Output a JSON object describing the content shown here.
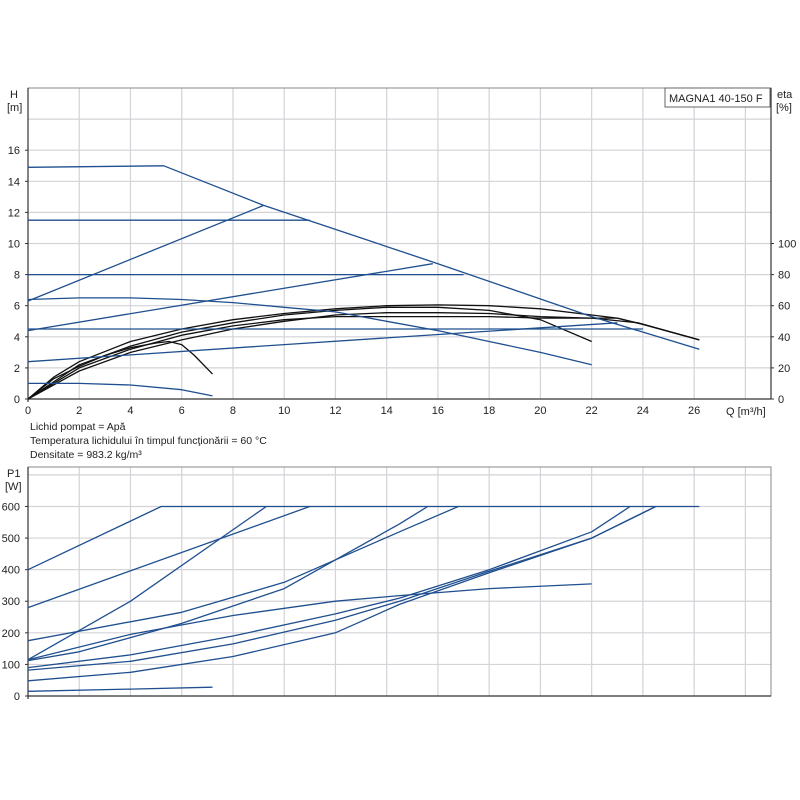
{
  "chart_data": [
    {
      "type": "line",
      "title": "MAGNA1 40-150 F",
      "xlabel": "Q [m³/h]",
      "ylabel": "H",
      "ylabel_unit": "[m]",
      "y2label": "eta",
      "y2label_unit": "[%]",
      "xlim": [
        0,
        29
      ],
      "ylim": [
        0,
        20
      ],
      "y2lim": [
        0,
        200
      ],
      "grid": true,
      "x_ticks": [
        "0",
        "2",
        "4",
        "6",
        "8",
        "10",
        "12",
        "14",
        "16",
        "18",
        "20",
        "22",
        "24",
        "26"
      ],
      "y_ticks": [
        "0",
        "2",
        "4",
        "6",
        "8",
        "10",
        "12",
        "14",
        "16"
      ],
      "y2_ticks": [
        "0",
        "20",
        "40",
        "60",
        "80",
        "100"
      ],
      "colors": {
        "head": "#1f4f8f",
        "efficiency": "#111111",
        "grid": "#d3d3d8"
      },
      "head_series": [
        {
          "points": [
            [
              0,
              14.9
            ],
            [
              5.3,
              15
            ],
            [
              9.2,
              12.45
            ],
            [
              16,
              8.7
            ],
            [
              22,
              5.3
            ],
            [
              26.2,
              3.2
            ]
          ]
        },
        {
          "points": [
            [
              0,
              11.5
            ],
            [
              11,
              11.5
            ]
          ]
        },
        {
          "points": [
            [
              0,
              8
            ],
            [
              17,
              8
            ]
          ]
        },
        {
          "points": [
            [
              0,
              4.5
            ],
            [
              24,
              4.5
            ]
          ]
        },
        {
          "points": [
            [
              0,
              6.3
            ],
            [
              9.2,
              12.45
            ]
          ]
        },
        {
          "points": [
            [
              0,
              4.4
            ],
            [
              15.8,
              8.7
            ]
          ]
        },
        {
          "points": [
            [
              0,
              2.4
            ],
            [
              10,
              3.5
            ],
            [
              23,
              4.9
            ]
          ]
        },
        {
          "points": [
            [
              0,
              6.4
            ],
            [
              2,
              6.5
            ],
            [
              4,
              6.5
            ],
            [
              6,
              6.4
            ],
            [
              8,
              6.2
            ],
            [
              10,
              5.9
            ],
            [
              12,
              5.6
            ],
            [
              14,
              5.0
            ],
            [
              16,
              4.4
            ],
            [
              18,
              3.7
            ],
            [
              20,
              3.0
            ],
            [
              22,
              2.2
            ]
          ]
        },
        {
          "points": [
            [
              0,
              1
            ],
            [
              2,
              1
            ],
            [
              4,
              0.9
            ],
            [
              6,
              0.6
            ],
            [
              7.2,
              0.2
            ]
          ]
        }
      ],
      "efficiency_series": [
        {
          "points": [
            [
              0,
              0
            ],
            [
              1,
              14
            ],
            [
              2,
              24
            ],
            [
              4,
              37
            ],
            [
              6,
              45
            ],
            [
              8,
              51
            ],
            [
              10,
              55
            ],
            [
              12,
              58
            ],
            [
              14,
              60
            ],
            [
              16,
              60.5
            ],
            [
              18,
              60
            ],
            [
              20,
              58
            ],
            [
              22,
              54
            ],
            [
              23,
              52
            ],
            [
              24,
              48
            ],
            [
              26.2,
              38
            ]
          ]
        },
        {
          "points": [
            [
              0,
              0
            ],
            [
              2,
              22
            ],
            [
              4,
              34
            ],
            [
              6,
              43
            ],
            [
              8,
              49
            ],
            [
              10,
              54
            ],
            [
              12,
              57
            ],
            [
              14,
              59
            ],
            [
              16,
              59
            ],
            [
              18,
              57
            ],
            [
              20,
              51
            ],
            [
              22,
              37
            ]
          ]
        },
        {
          "points": [
            [
              0,
              0
            ],
            [
              2,
              20
            ],
            [
              4,
              32
            ],
            [
              6,
              41
            ],
            [
              8,
              47
            ],
            [
              10,
              51
            ],
            [
              12,
              53
            ],
            [
              14,
              53
            ],
            [
              16,
              53
            ],
            [
              18,
              53
            ],
            [
              20,
              52
            ],
            [
              22,
              52
            ],
            [
              23,
              52
            ],
            [
              24,
              48
            ],
            [
              26.2,
              38
            ]
          ]
        },
        {
          "points": [
            [
              0,
              0
            ],
            [
              2,
              18
            ],
            [
              4,
              30
            ],
            [
              6,
              38
            ],
            [
              8,
              45
            ],
            [
              10,
              50
            ],
            [
              12,
              54
            ],
            [
              14,
              55.5
            ],
            [
              16,
              55.5
            ],
            [
              18,
              55
            ],
            [
              20,
              53
            ],
            [
              22,
              52
            ],
            [
              23.8,
              49
            ],
            [
              26.2,
              38
            ]
          ]
        },
        {
          "points": [
            [
              0,
              0
            ],
            [
              1,
              13
            ],
            [
              2,
              21
            ],
            [
              3,
              28
            ],
            [
              4,
              33
            ],
            [
              5,
              36
            ],
            [
              5.5,
              37
            ],
            [
              6,
              35
            ],
            [
              6.5,
              28
            ],
            [
              7.2,
              16
            ]
          ]
        }
      ]
    },
    {
      "type": "line",
      "ylabel": "P1",
      "ylabel_unit": "[W]",
      "xlim": [
        0,
        29
      ],
      "ylim": [
        0,
        725
      ],
      "grid": true,
      "y_ticks": [
        "0",
        "100",
        "200",
        "300",
        "400",
        "500",
        "600"
      ],
      "colors": {
        "power": "#1f4f8f"
      },
      "series": [
        {
          "points": [
            [
              0,
              400
            ],
            [
              5.2,
              600
            ],
            [
              26.2,
              600
            ]
          ]
        },
        {
          "points": [
            [
              0,
              280
            ],
            [
              11,
              600
            ]
          ]
        },
        {
          "points": [
            [
              0,
              115
            ],
            [
              4,
              300
            ],
            [
              9.3,
              600
            ]
          ]
        },
        {
          "points": [
            [
              0,
              175
            ],
            [
              6,
              265
            ],
            [
              10,
              360
            ],
            [
              14.5,
              520
            ],
            [
              16.8,
              600
            ]
          ]
        },
        {
          "points": [
            [
              0,
              112
            ],
            [
              2,
              140
            ],
            [
              6,
              230
            ],
            [
              10,
              340
            ],
            [
              14.5,
              545
            ],
            [
              15.6,
              600
            ]
          ]
        },
        {
          "points": [
            [
              0,
              115
            ],
            [
              4,
              195
            ],
            [
              8,
              255
            ],
            [
              12,
              300
            ],
            [
              14.5,
              318
            ],
            [
              18,
              340
            ],
            [
              22,
              355
            ]
          ]
        },
        {
          "points": [
            [
              0,
              90
            ],
            [
              4,
              130
            ],
            [
              8,
              190
            ],
            [
              12,
              260
            ],
            [
              14.5,
              310
            ],
            [
              18,
              400
            ],
            [
              22,
              520
            ],
            [
              23.5,
              600
            ]
          ]
        },
        {
          "points": [
            [
              0,
              82
            ],
            [
              4,
              110
            ],
            [
              8,
              165
            ],
            [
              12,
              240
            ],
            [
              14.5,
              300
            ],
            [
              18,
              395
            ],
            [
              22,
              500
            ],
            [
              24.5,
              600
            ]
          ]
        },
        {
          "points": [
            [
              0,
              48
            ],
            [
              4,
              75
            ],
            [
              8,
              125
            ],
            [
              12,
              200
            ],
            [
              14.5,
              290
            ],
            [
              18,
              390
            ],
            [
              22,
              500
            ],
            [
              24.5,
              600
            ]
          ]
        },
        {
          "points": [
            [
              0,
              15
            ],
            [
              4,
              22
            ],
            [
              7.2,
              28
            ]
          ]
        }
      ]
    }
  ],
  "notes": {
    "liquid": "Lichid pompat = Apă",
    "temperature": "Temperatura lichidului în timpul funcţionării = 60 °C",
    "density": "Densitate = 983.2 kg/m³"
  }
}
